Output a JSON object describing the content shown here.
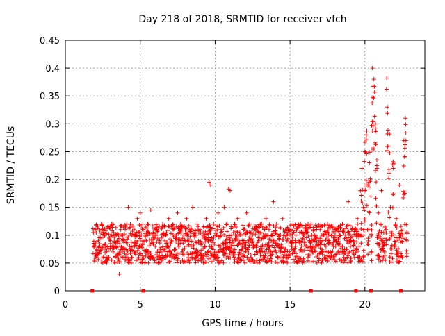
{
  "chart_data": {
    "type": "scatter",
    "title": "Day 218 of 2018, SRMTID for receiver vfch",
    "xlabel": "GPS time / hours",
    "ylabel": "SRMTID / TECUs",
    "xlim": [
      0,
      24
    ],
    "ylim": [
      0,
      0.45
    ],
    "xticks": [
      0,
      5,
      10,
      15,
      20
    ],
    "yticks": [
      0,
      0.05,
      0.1,
      0.15,
      0.2,
      0.25,
      0.3,
      0.35,
      0.4,
      0.45
    ],
    "xtick_labels": [
      "0",
      "5",
      "10",
      "15",
      "20"
    ],
    "ytick_labels": [
      "0",
      "0.05",
      "0.1",
      "0.15",
      "0.2",
      "0.25",
      "0.3",
      "0.35",
      "0.4",
      "0.45"
    ],
    "grid": true,
    "marker": "+",
    "color": "#ff0000",
    "series": [
      {
        "values": [
          [
            1.9,
            0.08
          ],
          [
            2.0,
            0.11
          ],
          [
            2.1,
            0.06
          ],
          [
            2.2,
            0.09
          ],
          [
            2.3,
            0.07
          ],
          [
            2.4,
            0.12
          ],
          [
            2.5,
            0.05
          ],
          [
            2.6,
            0.1
          ],
          [
            2.7,
            0.08
          ],
          [
            2.8,
            0.115
          ],
          [
            2.9,
            0.06
          ],
          [
            3.0,
            0.09
          ],
          [
            3.1,
            0.12
          ],
          [
            3.2,
            0.07
          ],
          [
            3.3,
            0.05
          ],
          [
            3.4,
            0.1
          ],
          [
            3.5,
            0.08
          ],
          [
            3.6,
            0.03
          ],
          [
            3.7,
            0.11
          ],
          [
            3.8,
            0.07
          ],
          [
            3.9,
            0.09
          ],
          [
            4.0,
            0.06
          ],
          [
            4.1,
            0.12
          ],
          [
            4.2,
            0.15
          ],
          [
            4.3,
            0.08
          ],
          [
            4.4,
            0.05
          ],
          [
            4.5,
            0.1
          ],
          [
            4.6,
            0.07
          ],
          [
            4.7,
            0.09
          ],
          [
            4.8,
            0.13
          ],
          [
            4.9,
            0.06
          ],
          [
            5.0,
            0.14
          ],
          [
            5.1,
            0.08
          ],
          [
            5.2,
            0.11
          ],
          [
            5.3,
            0.05
          ],
          [
            5.4,
            0.09
          ],
          [
            5.5,
            0.12
          ],
          [
            5.6,
            0.07
          ],
          [
            5.7,
            0.145
          ],
          [
            5.8,
            0.1
          ],
          [
            5.9,
            0.06
          ],
          [
            6.0,
            0.08
          ],
          [
            6.1,
            0.11
          ],
          [
            6.2,
            0.05
          ],
          [
            6.3,
            0.09
          ],
          [
            6.4,
            0.07
          ],
          [
            6.5,
            0.12
          ],
          [
            6.6,
            0.06
          ],
          [
            6.7,
            0.1
          ],
          [
            6.8,
            0.08
          ],
          [
            6.9,
            0.13
          ],
          [
            7.0,
            0.07
          ],
          [
            7.1,
            0.09
          ],
          [
            7.2,
            0.11
          ],
          [
            7.3,
            0.06
          ],
          [
            7.4,
            0.1
          ],
          [
            7.5,
            0.14
          ],
          [
            7.6,
            0.08
          ],
          [
            7.7,
            0.12
          ],
          [
            7.8,
            0.07
          ],
          [
            7.9,
            0.1
          ],
          [
            8.0,
            0.09
          ],
          [
            8.1,
            0.13
          ],
          [
            8.2,
            0.06
          ],
          [
            8.3,
            0.11
          ],
          [
            8.4,
            0.08
          ],
          [
            8.5,
            0.15
          ],
          [
            8.6,
            0.1
          ],
          [
            8.7,
            0.07
          ],
          [
            8.8,
            0.12
          ],
          [
            8.9,
            0.09
          ],
          [
            9.0,
            0.11
          ],
          [
            9.1,
            0.06
          ],
          [
            9.2,
            0.1
          ],
          [
            9.3,
            0.08
          ],
          [
            9.4,
            0.13
          ],
          [
            9.5,
            0.07
          ],
          [
            9.6,
            0.195
          ],
          [
            9.7,
            0.19
          ],
          [
            9.8,
            0.09
          ],
          [
            9.9,
            0.12
          ],
          [
            10.0,
            0.06
          ],
          [
            10.1,
            0.1
          ],
          [
            10.2,
            0.14
          ],
          [
            10.3,
            0.08
          ],
          [
            10.4,
            0.11
          ],
          [
            10.5,
            0.07
          ],
          [
            10.6,
            0.15
          ],
          [
            10.7,
            0.09
          ],
          [
            10.8,
            0.12
          ],
          [
            10.9,
            0.183
          ],
          [
            11.0,
            0.18
          ],
          [
            11.1,
            0.1
          ],
          [
            11.2,
            0.07
          ],
          [
            11.3,
            0.12
          ],
          [
            11.4,
            0.09
          ],
          [
            11.5,
            0.13
          ],
          [
            11.6,
            0.06
          ],
          [
            11.7,
            0.1
          ],
          [
            11.8,
            0.08
          ],
          [
            11.9,
            0.11
          ],
          [
            12.0,
            0.07
          ],
          [
            12.1,
            0.14
          ],
          [
            12.2,
            0.09
          ],
          [
            12.3,
            0.12
          ],
          [
            12.4,
            0.06
          ],
          [
            12.5,
            0.1
          ],
          [
            12.6,
            0.08
          ],
          [
            12.7,
            0.11
          ],
          [
            12.8,
            0.05
          ],
          [
            12.9,
            0.09
          ],
          [
            13.0,
            0.07
          ],
          [
            13.1,
            0.12
          ],
          [
            13.2,
            0.1
          ],
          [
            13.3,
            0.06
          ],
          [
            13.4,
            0.13
          ],
          [
            13.5,
            0.08
          ],
          [
            13.6,
            0.11
          ],
          [
            13.7,
            0.07
          ],
          [
            13.8,
            0.1
          ],
          [
            13.9,
            0.16
          ],
          [
            14.0,
            0.09
          ],
          [
            14.1,
            0.12
          ],
          [
            14.2,
            0.06
          ],
          [
            14.3,
            0.1
          ],
          [
            14.4,
            0.08
          ],
          [
            14.5,
            0.13
          ],
          [
            14.6,
            0.07
          ],
          [
            14.7,
            0.11
          ],
          [
            14.8,
            0.09
          ],
          [
            14.9,
            0.06
          ],
          [
            15.0,
            0.1
          ],
          [
            15.1,
            0.08
          ],
          [
            15.2,
            0.12
          ],
          [
            15.3,
            0.07
          ],
          [
            15.4,
            0.1
          ],
          [
            15.5,
            0.05
          ],
          [
            15.6,
            0.09
          ],
          [
            15.7,
            0.12
          ],
          [
            15.8,
            0.07
          ],
          [
            15.9,
            0.1
          ],
          [
            16.0,
            0.08
          ],
          [
            16.1,
            0.11
          ],
          [
            16.2,
            0.06
          ],
          [
            16.3,
            0.09
          ],
          [
            16.4,
            0.12
          ],
          [
            16.5,
            0.07
          ],
          [
            16.6,
            0.1
          ],
          [
            16.7,
            0.08
          ],
          [
            16.8,
            0.05
          ],
          [
            16.9,
            0.09
          ],
          [
            17.0,
            0.11
          ],
          [
            17.1,
            0.07
          ],
          [
            17.2,
            0.1
          ],
          [
            17.3,
            0.06
          ],
          [
            17.4,
            0.08
          ],
          [
            17.5,
            0.12
          ],
          [
            17.6,
            0.09
          ],
          [
            17.7,
            0.07
          ],
          [
            17.8,
            0.1
          ],
          [
            17.9,
            0.06
          ],
          [
            18.0,
            0.09
          ],
          [
            18.1,
            0.11
          ],
          [
            18.2,
            0.07
          ],
          [
            18.3,
            0.1
          ],
          [
            18.4,
            0.08
          ],
          [
            18.5,
            0.12
          ],
          [
            18.6,
            0.06
          ],
          [
            18.7,
            0.1
          ],
          [
            18.8,
            0.09
          ],
          [
            18.9,
            0.16
          ],
          [
            19.0,
            0.07
          ],
          [
            19.1,
            0.11
          ],
          [
            19.2,
            0.09
          ],
          [
            19.3,
            0.06
          ],
          [
            19.4,
            0.1
          ],
          [
            19.5,
            0.13
          ],
          [
            19.6,
            0.08
          ],
          [
            19.7,
            0.18
          ],
          [
            19.8,
            0.22
          ],
          [
            19.9,
            0.15
          ],
          [
            20.0,
            0.25
          ],
          [
            20.1,
            0.28
          ],
          [
            20.2,
            0.19
          ],
          [
            20.3,
            0.23
          ],
          [
            20.4,
            0.17
          ],
          [
            20.5,
            0.4
          ],
          [
            20.6,
            0.38
          ],
          [
            20.7,
            0.3
          ],
          [
            20.8,
            0.22
          ],
          [
            20.9,
            0.14
          ],
          [
            21.0,
            0.12
          ],
          [
            21.1,
            0.18
          ],
          [
            21.2,
            0.09
          ],
          [
            21.3,
            0.07
          ],
          [
            21.4,
            0.11
          ],
          [
            21.5,
            0.33
          ],
          [
            21.6,
            0.26
          ],
          [
            21.7,
            0.15
          ],
          [
            21.8,
            0.1
          ],
          [
            21.9,
            0.22
          ],
          [
            22.0,
            0.08
          ],
          [
            22.1,
            0.13
          ],
          [
            22.2,
            0.07
          ],
          [
            22.3,
            0.19
          ],
          [
            22.4,
            0.1
          ],
          [
            22.5,
            0.06
          ],
          [
            22.6,
            0.27
          ],
          [
            22.7,
            0.31
          ],
          [
            22.8,
            0.09
          ]
        ]
      }
    ],
    "axis_markers_x": [
      1.8,
      5.2,
      16.4,
      19.4,
      20.4,
      22.4
    ]
  }
}
